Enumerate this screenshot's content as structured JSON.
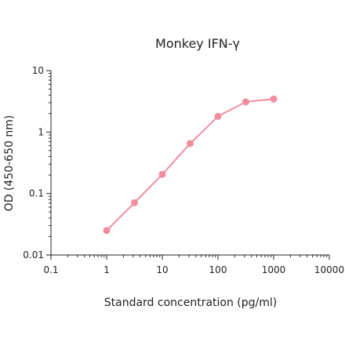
{
  "chart_data": {
    "type": "line",
    "title": "Monkey IFN-γ",
    "xlabel": "Standard concentration (pg/ml)",
    "ylabel": "OD (450-650 nm)",
    "x_scale": "log",
    "y_scale": "log",
    "xlim": [
      0.1,
      10000
    ],
    "ylim": [
      0.01,
      10
    ],
    "x_ticks": [
      "0.1",
      "1",
      "10",
      "100",
      "1000",
      "10000"
    ],
    "y_ticks": [
      "0.01",
      "0.1",
      "1",
      "10"
    ],
    "grid": false,
    "series": [
      {
        "color": "#f08ea0",
        "x": [
          1,
          3.16,
          10,
          31.6,
          100,
          316,
          1000
        ],
        "y": [
          0.025,
          0.071,
          0.205,
          0.65,
          1.8,
          3.1,
          3.45
        ]
      }
    ]
  }
}
